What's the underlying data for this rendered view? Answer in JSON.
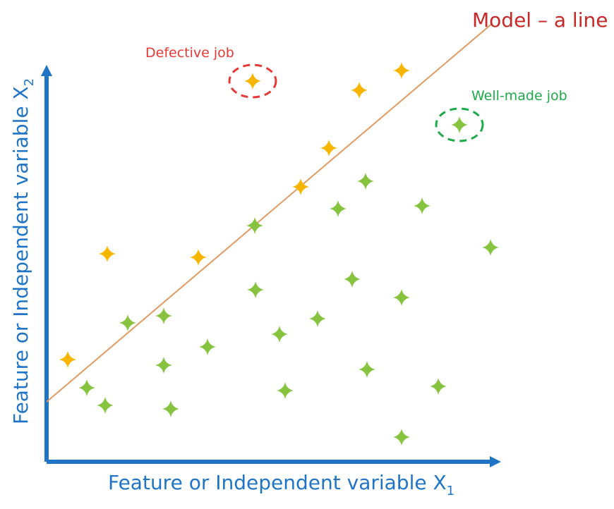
{
  "colors": {
    "axis": "#1f74c6",
    "model_line": "#e09a62",
    "defective_marker": "#f7b500",
    "wellmade_marker": "#86c440",
    "model_label": "#c62828",
    "defective_label": "#e53935",
    "wellmade_label": "#1faa4a",
    "defective_circle": "#e53935",
    "wellmade_circle": "#1faa4a"
  },
  "labels": {
    "model": "Model – a line",
    "defective": "Defective job",
    "wellmade": "Well-made job",
    "x_axis_main": "Feature or Independent variable X",
    "x_axis_sub": "1",
    "y_axis_main": "Feature or Independent variable X",
    "y_axis_sub": "2"
  },
  "chart_data": {
    "type": "scatter",
    "x": {
      "label": "Feature or Independent variable X1",
      "range": [
        0,
        640
      ]
    },
    "y": {
      "label": "Feature or Independent variable X2",
      "range": [
        0,
        560
      ]
    },
    "model_line": {
      "label": "Model – a line",
      "slope": 0.85,
      "intercept": 85
    },
    "series": [
      {
        "name": "Defective job",
        "color": "#f7b500",
        "points": [
          {
            "x": 30,
            "y": 145
          },
          {
            "x": 86,
            "y": 295
          },
          {
            "x": 215,
            "y": 290
          },
          {
            "x": 292,
            "y": 540
          },
          {
            "x": 360,
            "y": 390
          },
          {
            "x": 400,
            "y": 445
          },
          {
            "x": 443,
            "y": 527
          },
          {
            "x": 503,
            "y": 555
          }
        ]
      },
      {
        "name": "Well-made job",
        "color": "#86c440",
        "points": [
          {
            "x": 57,
            "y": 105
          },
          {
            "x": 83,
            "y": 80
          },
          {
            "x": 115,
            "y": 197
          },
          {
            "x": 166,
            "y": 207
          },
          {
            "x": 166,
            "y": 137
          },
          {
            "x": 176,
            "y": 75
          },
          {
            "x": 228,
            "y": 163
          },
          {
            "x": 295,
            "y": 335
          },
          {
            "x": 296,
            "y": 244
          },
          {
            "x": 330,
            "y": 181
          },
          {
            "x": 338,
            "y": 101
          },
          {
            "x": 384,
            "y": 203
          },
          {
            "x": 413,
            "y": 359
          },
          {
            "x": 433,
            "y": 259
          },
          {
            "x": 452,
            "y": 398
          },
          {
            "x": 454,
            "y": 131
          },
          {
            "x": 503,
            "y": 233
          },
          {
            "x": 503,
            "y": 35
          },
          {
            "x": 532,
            "y": 363
          },
          {
            "x": 555,
            "y": 107
          },
          {
            "x": 585,
            "y": 478
          },
          {
            "x": 629,
            "y": 304
          }
        ]
      }
    ],
    "highlighted": [
      {
        "series": "Defective job",
        "x": 292,
        "y": 540,
        "label": "Defective job"
      },
      {
        "series": "Well-made job",
        "x": 585,
        "y": 478,
        "label": "Well-made job"
      }
    ]
  }
}
